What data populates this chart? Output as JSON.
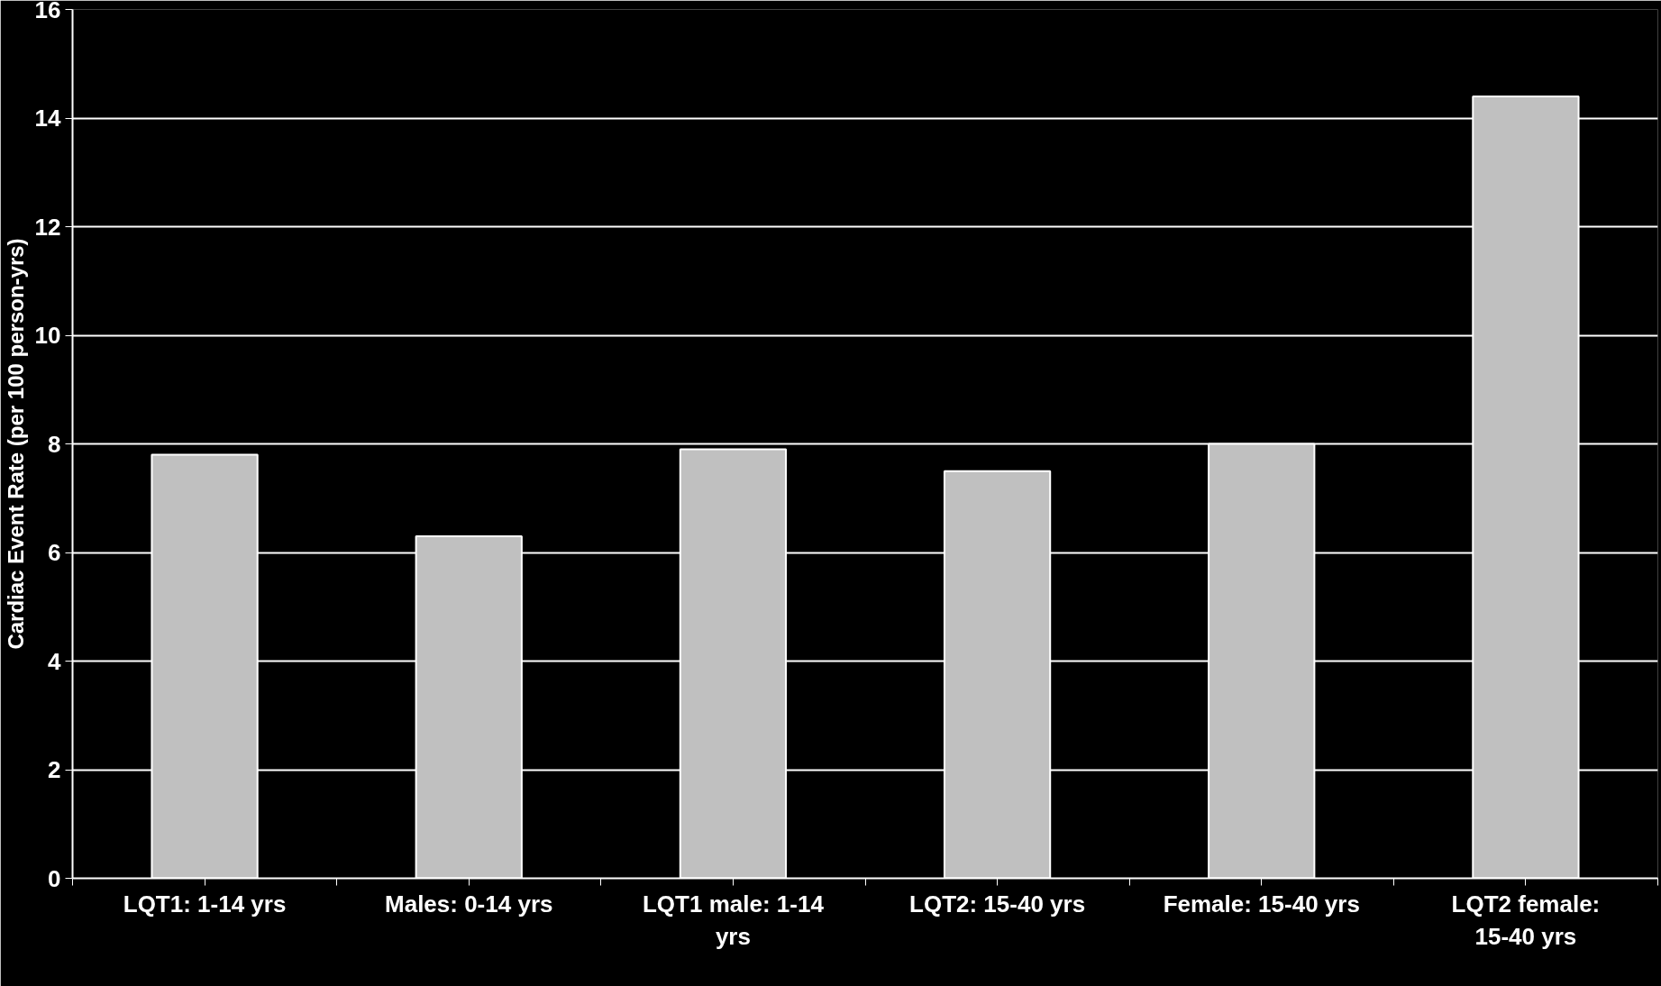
{
  "chart_data": {
    "type": "bar",
    "ylabel": "Cardiac Event Rate (per 100 person-yrs)",
    "categories": [
      "LQT1: 1-14 yrs",
      "Males: 0-14 yrs",
      "LQT1 male: 1-14 yrs",
      "LQT2: 15-40 yrs",
      "Female: 15-40 yrs",
      "LQT2 female: 15-40 yrs"
    ],
    "values": [
      7.8,
      6.3,
      7.9,
      7.5,
      8.0,
      14.4
    ],
    "color": "#c0c0c0",
    "ylim": [
      0,
      16
    ],
    "yticks": [
      0,
      2,
      4,
      6,
      8,
      10,
      12,
      14,
      16
    ],
    "grid": "y"
  }
}
